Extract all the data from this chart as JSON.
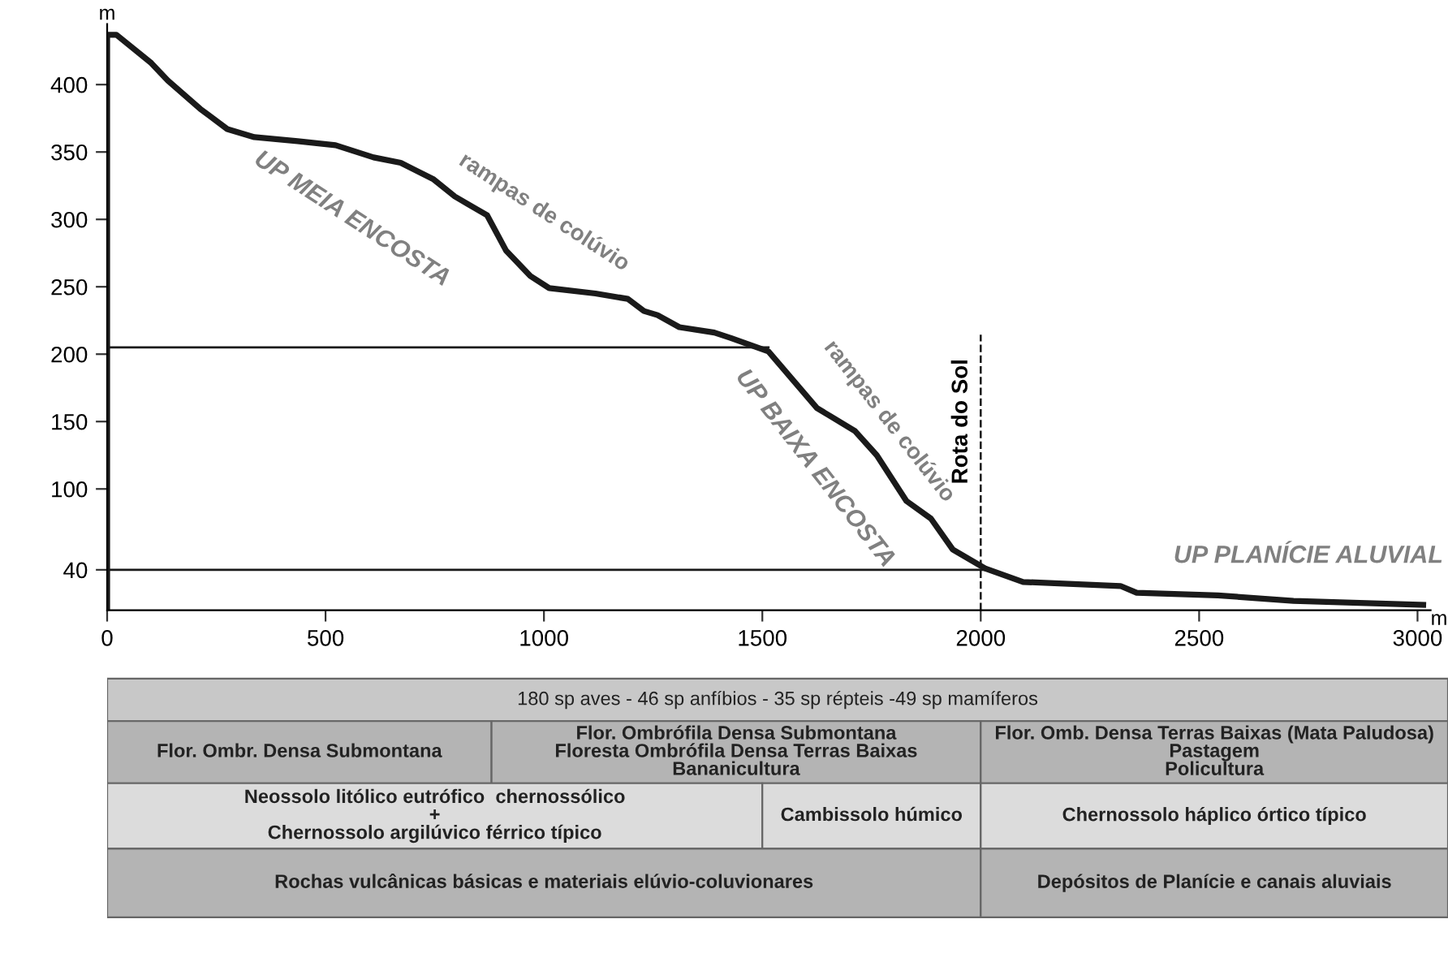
{
  "chart_data": {
    "type": "line",
    "xlabel": "m",
    "ylabel": "m",
    "xlim": [
      0,
      3030
    ],
    "ylim": [
      10,
      445
    ],
    "xticks": [
      0,
      500,
      1000,
      1500,
      2000,
      2500,
      3000
    ],
    "yticks": [
      40,
      100,
      150,
      200,
      250,
      300,
      350,
      400
    ],
    "grid": false,
    "legend": false,
    "marker": "none",
    "line_style": "solid",
    "series": [
      {
        "color": "#1a1a1a",
        "x": [
          0,
          0,
          21,
          101,
          139,
          213,
          275,
          337,
          436,
          523,
          610,
          672,
          746,
          796,
          870,
          913,
          969,
          1012,
          1118,
          1192,
          1229,
          1260,
          1310,
          1390,
          1428,
          1514,
          1625,
          1712,
          1762,
          1830,
          1886,
          1936,
          2010,
          2097,
          2320,
          2357,
          2543,
          2716,
          3013
        ],
        "values": [
          10,
          437,
          437,
          416,
          403,
          382,
          367,
          361,
          358,
          355,
          346,
          342,
          330,
          317,
          303,
          277,
          258,
          249,
          245,
          241,
          232,
          229,
          220,
          216,
          212,
          202,
          160,
          143,
          125,
          91,
          78,
          55,
          41,
          31,
          28,
          23,
          21,
          17,
          14
        ]
      },
      {
        "color": "#1a1a1a",
        "x": [
          0,
          1514
        ],
        "values": [
          205,
          205
        ]
      },
      {
        "color": "#1a1a1a",
        "x": [
          0,
          2010
        ],
        "values": [
          40,
          40
        ]
      }
    ],
    "ref_lines": [
      {
        "axis": "x",
        "value": 2000,
        "label": "Rota do Sol",
        "color": "#1a1a1a",
        "line_style": "dashed"
      }
    ],
    "annotations": [
      "UP MEIA ENCOSTA",
      "rampas de colúvio",
      "UP BAIXA ENCOSTA",
      "rampas de colúvio",
      "UP PLANÍCIE ALUVIAL",
      "180 sp aves - 46 sp anfíbios - 35 sp répteis -49 sp mamíferos",
      "Flor. Ombr. Densa Submontana",
      "Flor. Ombrófila Densa Submontana\nFloresta Ombrófila Densa Terras Baixas\nBananicultura",
      "Flor. Omb. Densa Terras Baixas (Mata Paludosa)\nPastagem\nPolicultura",
      "Neossolo litólico eutrófico  chernossólico\n+\nChernossolo argilúvico férrico típico",
      "Cambissolo húmico",
      "Chernossolo háplico órtico típico",
      "Rochas vulcânicas básicas e materiais elúvio-coluvionares",
      "Depósitos de Planície e canais aluviais"
    ]
  }
}
